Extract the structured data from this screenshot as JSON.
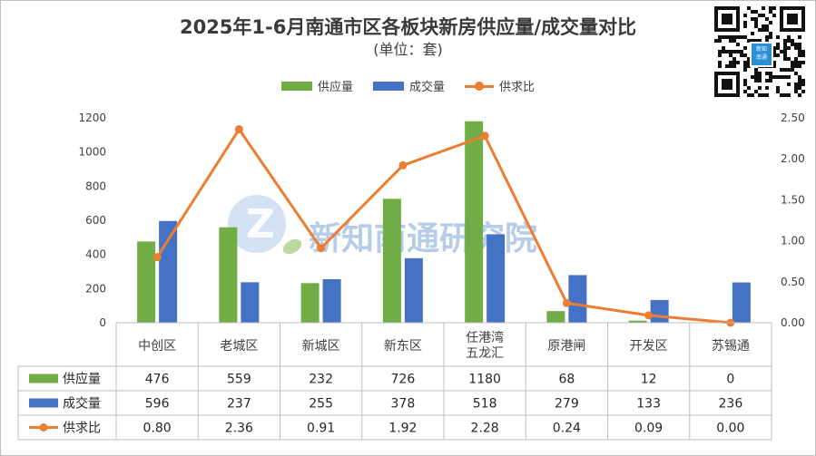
{
  "header": {
    "title": "2025年1-6月南通市区各板块新房供应量/成交量对比",
    "subtitle": "(单位：套)"
  },
  "watermark": "新知南通研究院",
  "qr_badge": {
    "line1": "新知",
    "line2": "南通"
  },
  "colors": {
    "supply": "#70AD47",
    "deals": "#4472C4",
    "ratio": "#ED7D31",
    "watermark": "#7ba3d6"
  },
  "chart_data": {
    "type": "bar",
    "categories": [
      "中创区",
      "老城区",
      "新城区",
      "新东区",
      "任港湾\n五龙汇",
      "原港闸",
      "开发区",
      "苏锡通"
    ],
    "series": [
      {
        "name": "供应量",
        "type": "bar",
        "axis": "left",
        "values": [
          476,
          559,
          232,
          726,
          1180,
          68,
          12,
          0
        ]
      },
      {
        "name": "成交量",
        "type": "bar",
        "axis": "left",
        "values": [
          596,
          237,
          255,
          378,
          518,
          279,
          133,
          236
        ]
      },
      {
        "name": "供求比",
        "type": "line",
        "axis": "right",
        "values": [
          0.8,
          2.36,
          0.91,
          1.92,
          2.28,
          0.24,
          0.09,
          0.0
        ]
      }
    ],
    "table_values": [
      [
        "476",
        "559",
        "232",
        "726",
        "1180",
        "68",
        "12",
        "0"
      ],
      [
        "596",
        "237",
        "255",
        "378",
        "518",
        "279",
        "133",
        "236"
      ],
      [
        "0.80",
        "2.36",
        "0.91",
        "1.92",
        "2.28",
        "0.24",
        "0.09",
        "0.00"
      ]
    ],
    "ylim_left": [
      0,
      1200
    ],
    "yticks_left": [
      "0",
      "200",
      "400",
      "600",
      "800",
      "1000",
      "1200"
    ],
    "ylim_right": [
      0,
      2.5
    ],
    "yticks_right": [
      "0.00",
      "0.50",
      "1.00",
      "1.50",
      "2.00",
      "2.50"
    ],
    "grid": false,
    "legend_position": "top-center",
    "data_table": true
  }
}
